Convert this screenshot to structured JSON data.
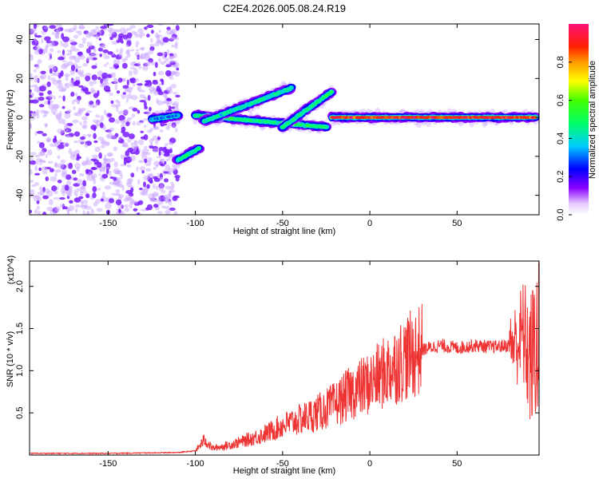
{
  "title": "C2E4.2026.005.08.24.R19",
  "chart_data": [
    {
      "type": "heatmap",
      "xlabel": "Height of straight line (km)",
      "ylabel": "Frequency (Hz)",
      "xlim": [
        -195,
        97
      ],
      "ylim": [
        -50,
        48
      ],
      "xticks": [
        -150,
        -100,
        -50,
        0,
        50
      ],
      "yticks": [
        -40,
        -20,
        0,
        20,
        40
      ],
      "colorbar": {
        "label": "Normalized spectral amplitude",
        "range": [
          0,
          1
        ],
        "ticks": [
          0.0,
          0.2,
          0.4,
          0.6,
          0.8
        ]
      },
      "features": [
        {
          "kind": "noise",
          "x": [
            -195,
            -110
          ],
          "y": [
            -50,
            48
          ],
          "amplitude": 0.1
        },
        {
          "kind": "segment",
          "x": [
            -125,
            -110
          ],
          "y": [
            -1,
            1
          ],
          "amplitude": 0.3
        },
        {
          "kind": "segment",
          "x": [
            -110,
            -98
          ],
          "y": [
            -22,
            -16
          ],
          "amplitude": 0.45
        },
        {
          "kind": "segment",
          "x": [
            -100,
            -25
          ],
          "y": [
            1,
            -5
          ],
          "amplitude": 0.5
        },
        {
          "kind": "segment",
          "x": [
            -95,
            -45
          ],
          "y": [
            -2,
            15
          ],
          "amplitude": 0.45
        },
        {
          "kind": "segment",
          "x": [
            -50,
            -22
          ],
          "y": [
            -5,
            13
          ],
          "amplitude": 0.5
        },
        {
          "kind": "segment",
          "x": [
            -22,
            95
          ],
          "y": [
            0,
            0
          ],
          "amplitude": 0.9
        }
      ]
    },
    {
      "type": "line",
      "xlabel": "Height of straight line (km)",
      "ylabel": "SNR (10 * v/v)",
      "multiplier": "(x10^4)",
      "xlim": [
        -195,
        97
      ],
      "ylim": [
        0,
        2.3
      ],
      "xticks": [
        -150,
        -100,
        -50,
        0,
        50
      ],
      "yticks": [
        0.5,
        1.0,
        1.5,
        2.0
      ],
      "series": [
        {
          "color": "#ee3333",
          "x": [
            -195,
            -150,
            -110,
            -100,
            -97,
            -95,
            -90,
            -80,
            -70,
            -60,
            -50,
            -40,
            -30,
            -20,
            -10,
            0,
            10,
            20,
            30,
            40,
            50,
            60,
            70,
            80,
            85,
            88,
            90,
            92,
            95,
            97
          ],
          "y": [
            0.02,
            0.02,
            0.03,
            0.05,
            0.12,
            0.18,
            0.08,
            0.12,
            0.18,
            0.25,
            0.35,
            0.42,
            0.5,
            0.6,
            0.75,
            0.85,
            1.0,
            1.15,
            1.25,
            1.3,
            1.27,
            1.3,
            1.28,
            1.3,
            1.35,
            1.45,
            1.25,
            1.1,
            1.3,
            1.3
          ]
        }
      ]
    }
  ]
}
